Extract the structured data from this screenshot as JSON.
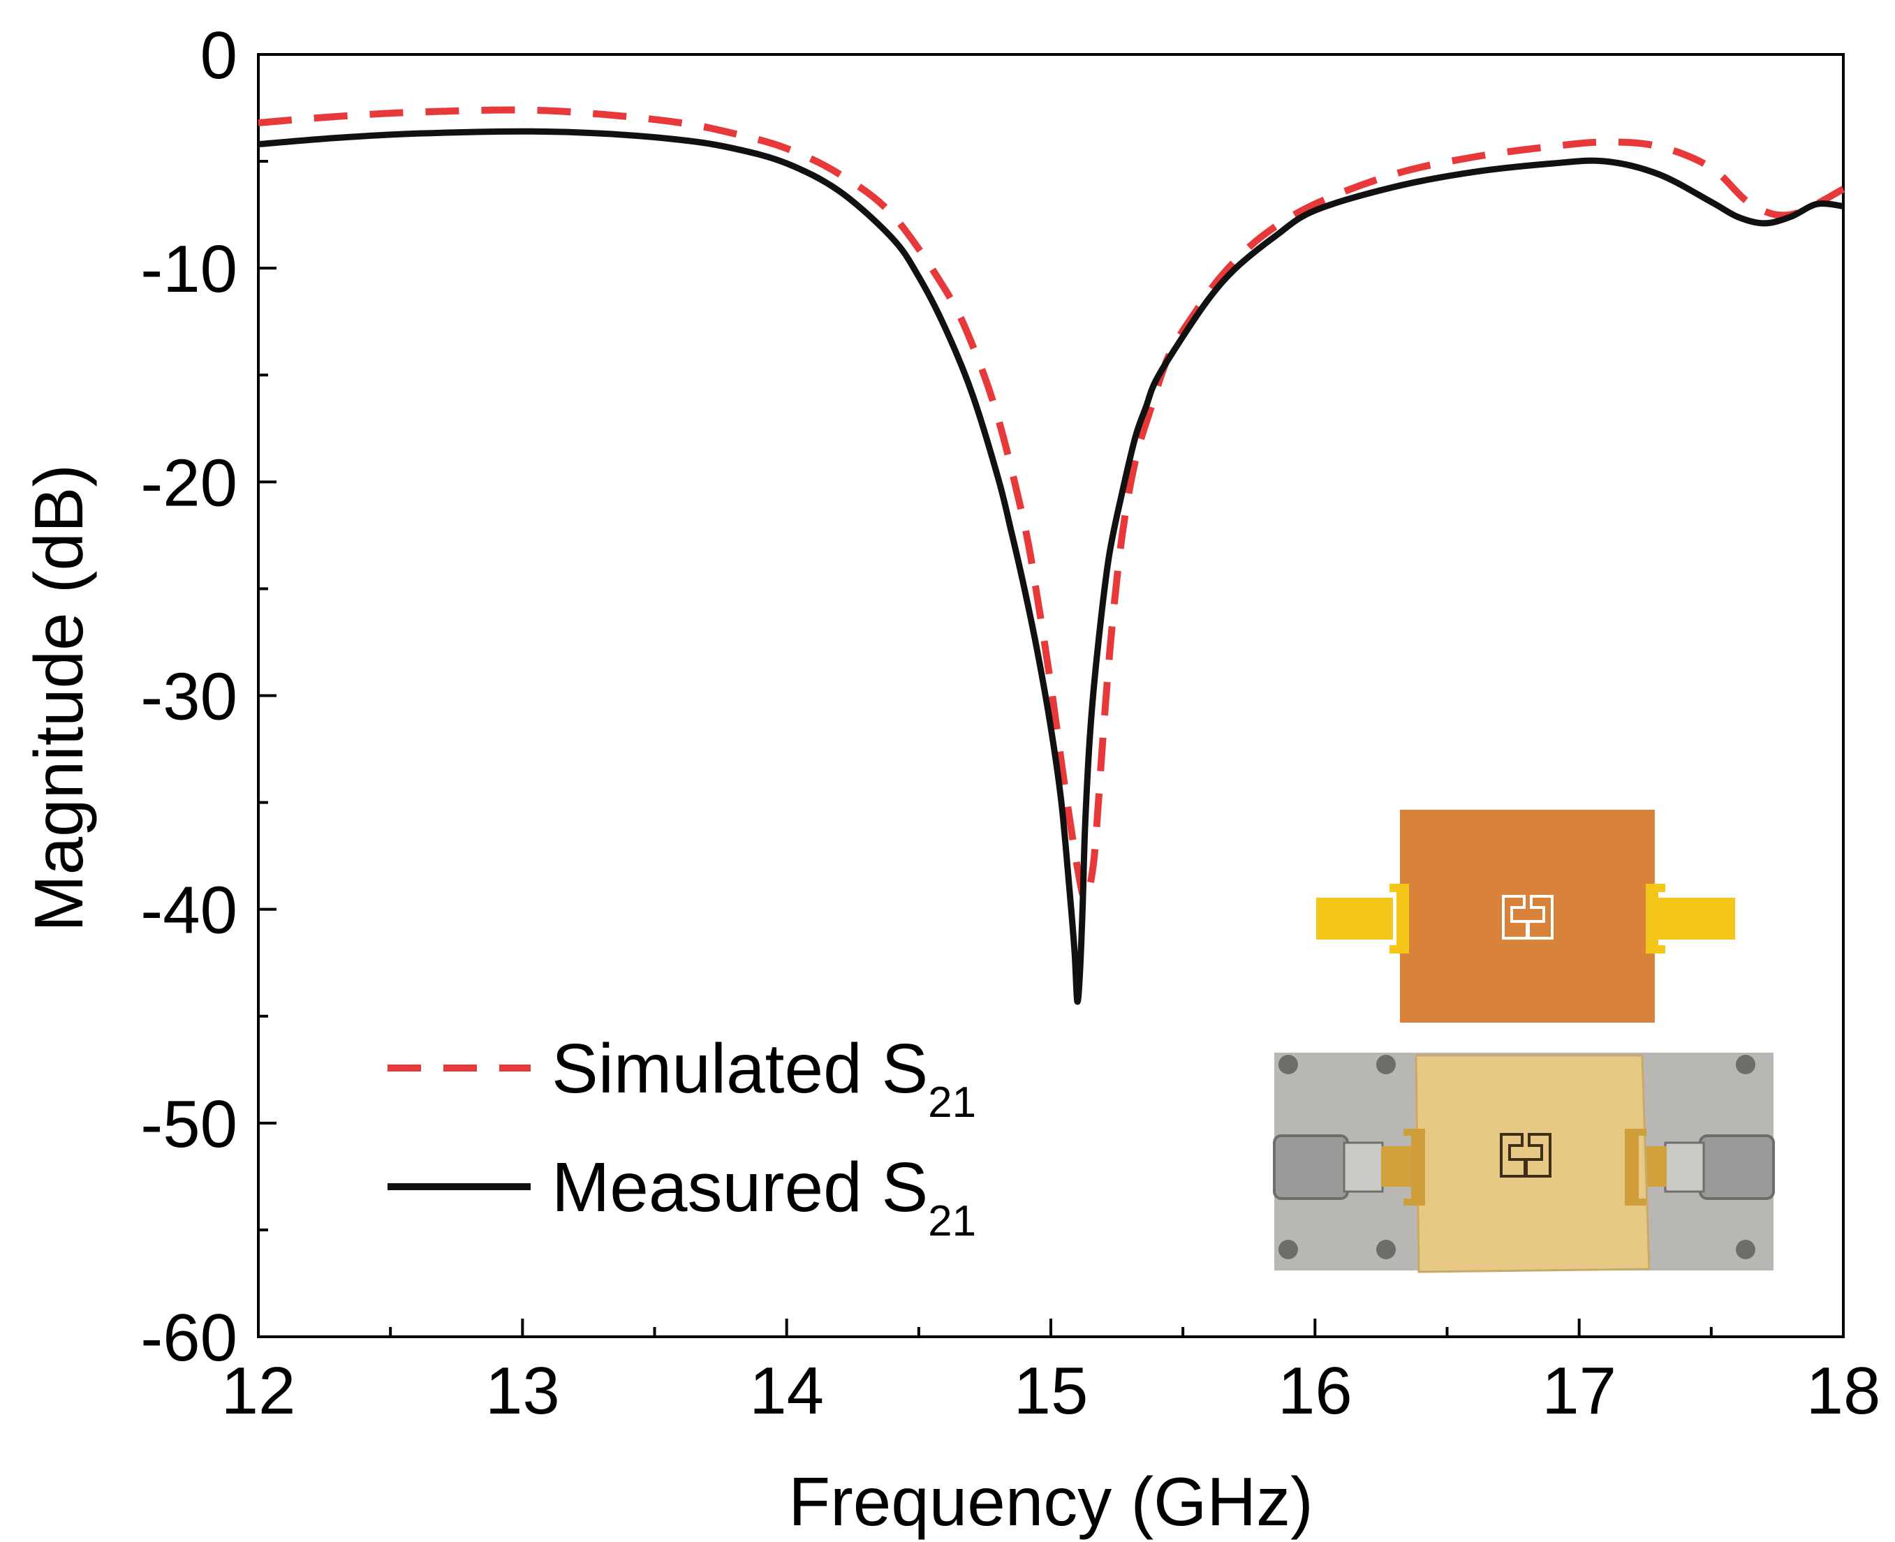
{
  "chart_data": {
    "type": "line",
    "title": "",
    "xlabel": "Frequency (GHz)",
    "ylabel": "Magnitude (dB)",
    "xlim": [
      12,
      18
    ],
    "ylim": [
      -60,
      0
    ],
    "x_ticks": [
      "12",
      "13",
      "14",
      "15",
      "16",
      "17",
      "18"
    ],
    "y_ticks": [
      "0",
      "-10",
      "-20",
      "-30",
      "-40",
      "-50",
      "-60"
    ],
    "grid": false,
    "legend_position": "bottom-left",
    "series": [
      {
        "name": "Simulated S",
        "subscript": "21",
        "color": "#e8393a",
        "style": "dashed",
        "x": [
          12,
          12.3,
          12.6,
          13.0,
          13.3,
          13.6,
          13.8,
          14.0,
          14.2,
          14.4,
          14.6,
          14.7,
          14.8,
          14.9,
          14.95,
          15.0,
          15.05,
          15.1,
          15.13,
          15.16,
          15.18,
          15.2,
          15.23,
          15.27,
          15.32,
          15.38,
          15.45,
          15.55,
          15.65,
          15.8,
          16.0,
          16.3,
          16.6,
          16.9,
          17.1,
          17.3,
          17.5,
          17.65,
          17.8,
          18.0
        ],
        "y": [
          -3.2,
          -2.9,
          -2.7,
          -2.6,
          -2.8,
          -3.2,
          -3.7,
          -4.4,
          -5.6,
          -7.5,
          -11.0,
          -13.5,
          -17.0,
          -22.0,
          -25.5,
          -29.5,
          -34.0,
          -38.0,
          -39.5,
          -38.0,
          -35.0,
          -31.5,
          -27.0,
          -22.5,
          -19.0,
          -16.5,
          -14.0,
          -12.0,
          -10.3,
          -8.5,
          -7.0,
          -5.6,
          -4.8,
          -4.3,
          -4.1,
          -4.3,
          -5.3,
          -7.0,
          -7.5,
          -6.3
        ]
      },
      {
        "name": "Measured S",
        "subscript": "21",
        "color": "#111111",
        "style": "solid",
        "x": [
          12,
          12.3,
          12.6,
          13.0,
          13.3,
          13.6,
          13.8,
          14.0,
          14.2,
          14.4,
          14.5,
          14.6,
          14.7,
          14.8,
          14.85,
          14.9,
          14.95,
          15.0,
          15.04,
          15.07,
          15.09,
          15.1,
          15.11,
          15.12,
          15.13,
          15.15,
          15.18,
          15.22,
          15.27,
          15.32,
          15.36,
          15.4,
          15.5,
          15.6,
          15.7,
          15.85,
          16.0,
          16.3,
          16.6,
          16.9,
          17.1,
          17.3,
          17.5,
          17.6,
          17.7,
          17.8,
          17.9,
          18.0
        ],
        "y": [
          -4.2,
          -3.9,
          -3.7,
          -3.6,
          -3.7,
          -4.0,
          -4.4,
          -5.1,
          -6.4,
          -8.6,
          -10.4,
          -12.8,
          -15.8,
          -19.8,
          -22.3,
          -25.0,
          -28.0,
          -31.5,
          -35.0,
          -39.0,
          -42.0,
          -44.3,
          -43.0,
          -40.0,
          -36.0,
          -31.5,
          -27.5,
          -23.5,
          -20.5,
          -17.9,
          -16.5,
          -15.2,
          -13.2,
          -11.4,
          -10.0,
          -8.5,
          -7.3,
          -6.2,
          -5.5,
          -5.1,
          -5.0,
          -5.6,
          -6.9,
          -7.6,
          -7.9,
          -7.6,
          -7.0,
          -7.1
        ]
      }
    ]
  },
  "inset": {
    "schematic_label": "filter layout schematic",
    "photo_label": "fabricated prototype photo"
  }
}
